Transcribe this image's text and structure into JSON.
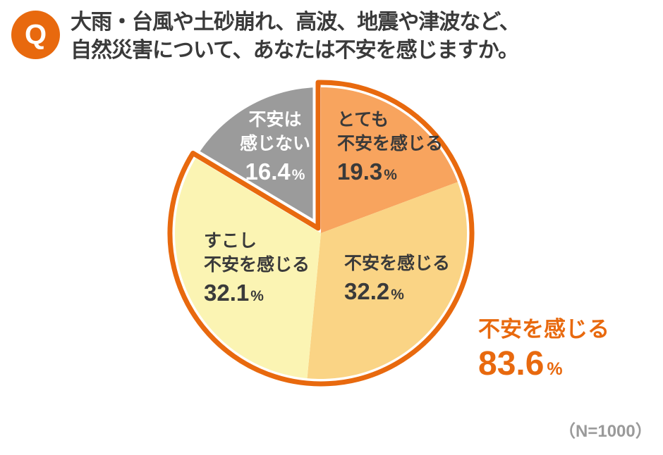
{
  "question": {
    "badge": "Q",
    "title_line1": "大雨・台風や土砂崩れ、高波、地震や津波など、",
    "title_line2": "自然災害について、あなたは不安を感じますか。"
  },
  "chart_data": {
    "type": "pie",
    "title": "自然災害について、あなたは不安を感じますか。",
    "direction": "clockwise",
    "start_angle_deg": 0,
    "unit": "%",
    "slices": [
      {
        "name": "very-anxious",
        "label_lines": [
          "とても",
          "不安を感じる"
        ],
        "value": 19.3,
        "color": "#F8A45E",
        "label_color": "#3A3A3A"
      },
      {
        "name": "anxious",
        "label_lines": [
          "不安を感じる"
        ],
        "value": 32.2,
        "color": "#FAD485",
        "label_color": "#3A3A3A"
      },
      {
        "name": "slightly-anxious",
        "label_lines": [
          "すこし",
          "不安を感じる"
        ],
        "value": 32.1,
        "color": "#FBF4B3",
        "label_color": "#3A3A3A"
      },
      {
        "name": "not-anxious",
        "label_lines": [
          "不安は",
          "感じない"
        ],
        "value": 16.4,
        "color": "#9B9B9B",
        "label_color": "#FFFFFF"
      }
    ],
    "highlight": {
      "label": "不安を感じる",
      "value": 83.6,
      "slice_indexes": [
        0,
        1,
        2
      ],
      "outline_color": "#E8690E"
    },
    "note": "（N=1000）",
    "legend_position": "inside-slices",
    "grid": false
  },
  "colors": {
    "accent_orange": "#E8690E",
    "text_dark": "#3A3A3A",
    "note_gray": "#9A9A9A",
    "background": "#FFFFFF",
    "gap_white": "#FFFFFF"
  }
}
